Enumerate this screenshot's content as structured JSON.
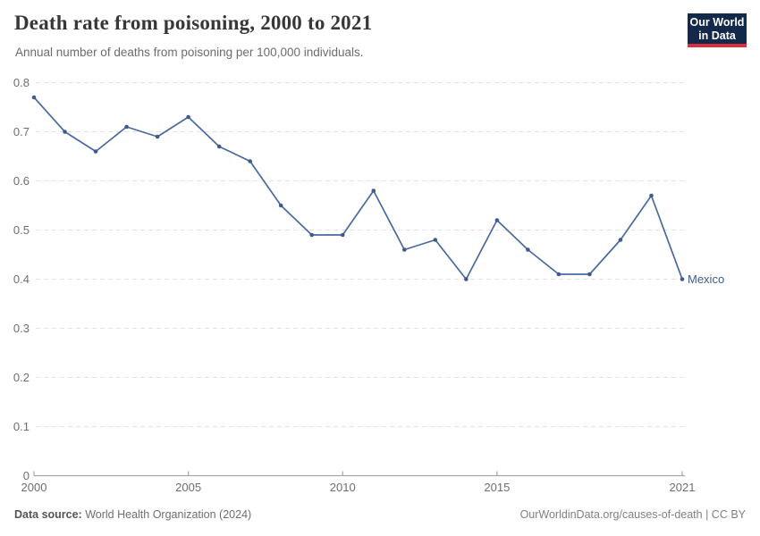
{
  "header": {
    "title": "Death rate from poisoning, 2000 to 2021",
    "subtitle": "Annual number of deaths from poisoning per 100,000 individuals.",
    "logo": {
      "line1": "Our World",
      "line2": "in Data"
    }
  },
  "series_label": "Mexico",
  "footer": {
    "source_label": "Data source:",
    "source_value": " World Health Organization (2024)",
    "credit": "OurWorldinData.org/causes-of-death | CC BY"
  },
  "colors": {
    "line": "#4a69a0",
    "marker": "#41598c",
    "entity_label": "#3d5a8f",
    "grid": "#e3e3e3",
    "axis": "#a6a6a6",
    "logo_bg": "#12294b",
    "logo_accent": "#dc2e41"
  },
  "chart_data": {
    "type": "line",
    "title": "Death rate from poisoning, 2000 to 2021",
    "subtitle": "Annual number of deaths from poisoning per 100,000 individuals.",
    "x": [
      2000,
      2001,
      2002,
      2003,
      2004,
      2005,
      2006,
      2007,
      2008,
      2009,
      2010,
      2011,
      2012,
      2013,
      2014,
      2015,
      2016,
      2017,
      2018,
      2019,
      2020,
      2021
    ],
    "series": [
      {
        "name": "Mexico",
        "values": [
          0.77,
          0.7,
          0.66,
          0.71,
          0.69,
          0.73,
          0.67,
          0.64,
          0.55,
          0.49,
          0.49,
          0.58,
          0.46,
          0.48,
          0.4,
          0.52,
          0.46,
          0.41,
          0.41,
          0.48,
          0.57,
          0.4
        ]
      }
    ],
    "xlabel": "",
    "ylabel": "",
    "ylim": [
      0,
      0.8
    ],
    "y_ticks": [
      0,
      0.1,
      0.2,
      0.3,
      0.4,
      0.5,
      0.6,
      0.7,
      0.8
    ],
    "x_ticks": [
      2000,
      2005,
      2010,
      2015,
      2021
    ],
    "grid": "horizontal-dashed",
    "legend_position": "end-of-line-label"
  }
}
